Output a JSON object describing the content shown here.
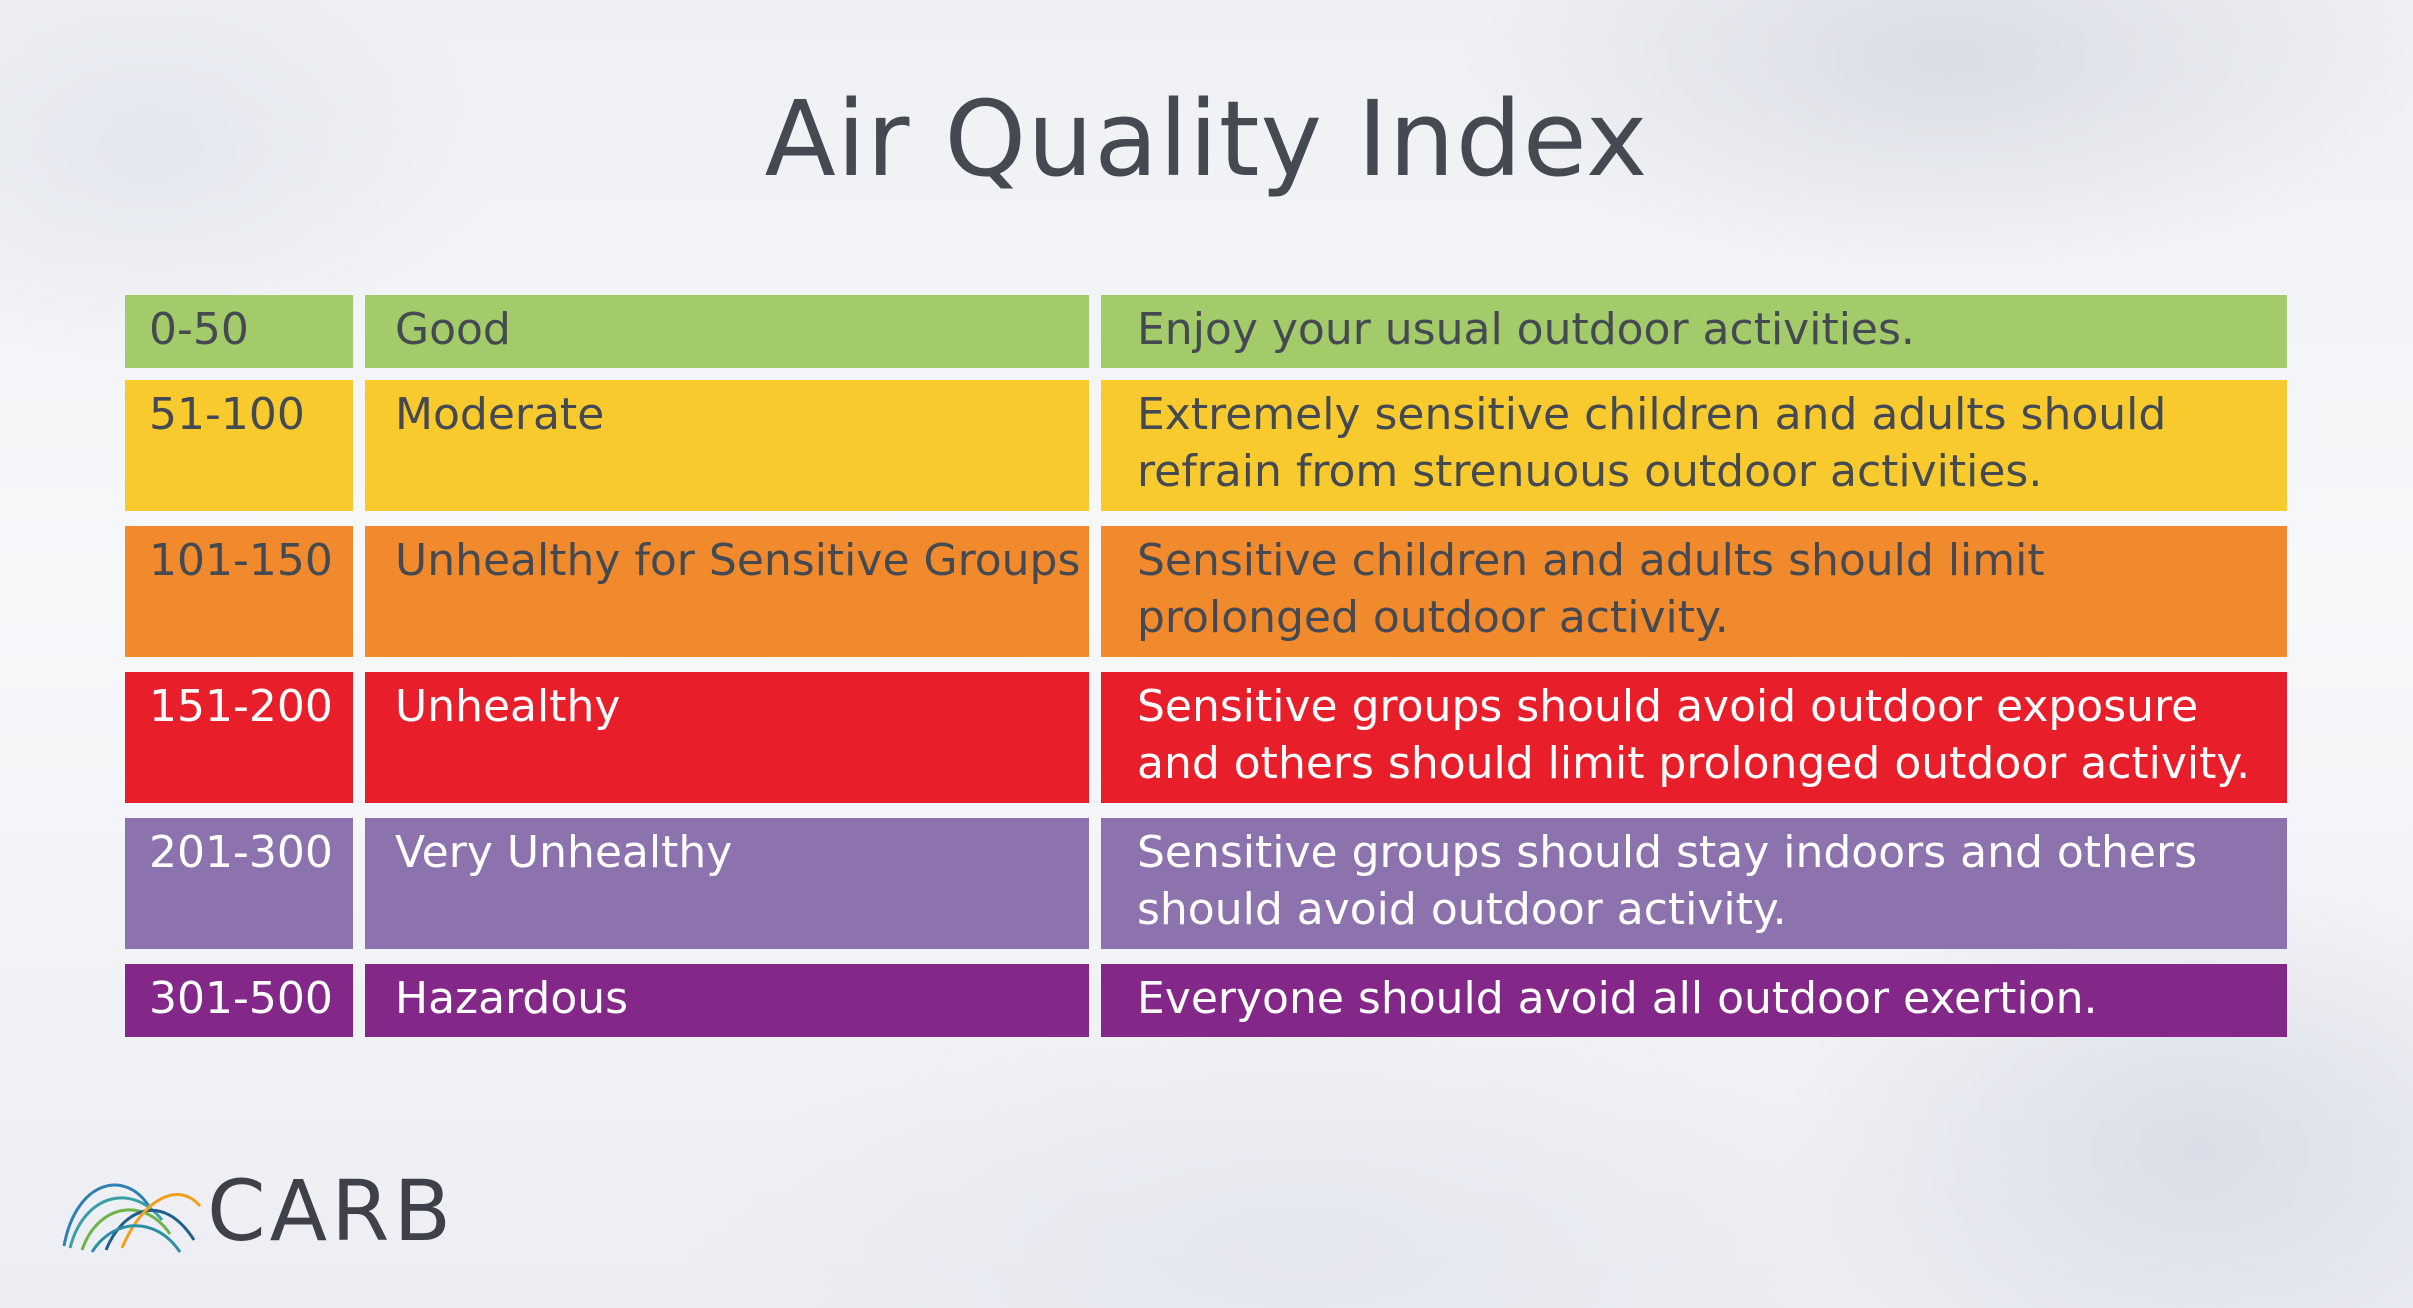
{
  "title": "Air Quality Index",
  "rows": [
    {
      "range": "0-50",
      "category": "Good",
      "description": "Enjoy your usual outdoor activities.",
      "color": "#a3cb69",
      "text_color": "#454a52"
    },
    {
      "range": "51-100",
      "category": "Moderate",
      "description": "Extremely sensitive children and adults should refrain from strenuous outdoor activities.",
      "color": "#f8ca2e",
      "text_color": "#454a52"
    },
    {
      "range": "101-150",
      "category": "Unhealthy for Sensitive Groups",
      "description": "Sensitive children and adults should limit prolonged outdoor activity.",
      "color": "#f08a2c",
      "text_color": "#454a52"
    },
    {
      "range": "151-200",
      "category": "Unhealthy",
      "description": "Sensitive groups should avoid outdoor exposure and others should limit prolonged outdoor activity.",
      "color": "#e81f2b",
      "text_color": "#ffffff"
    },
    {
      "range": "201-300",
      "category": "Very Unhealthy",
      "description": "Sensitive groups should stay indoors and others should avoid outdoor activity.",
      "color": "#8d73ae",
      "text_color": "#ffffff"
    },
    {
      "range": "301-500",
      "category": "Hazardous",
      "description": "Everyone should avoid all outdoor exertion.",
      "color": "#832888",
      "text_color": "#ffffff"
    }
  ],
  "logo": {
    "text": "CARB",
    "icon": "carb-arcs-logo-icon"
  }
}
